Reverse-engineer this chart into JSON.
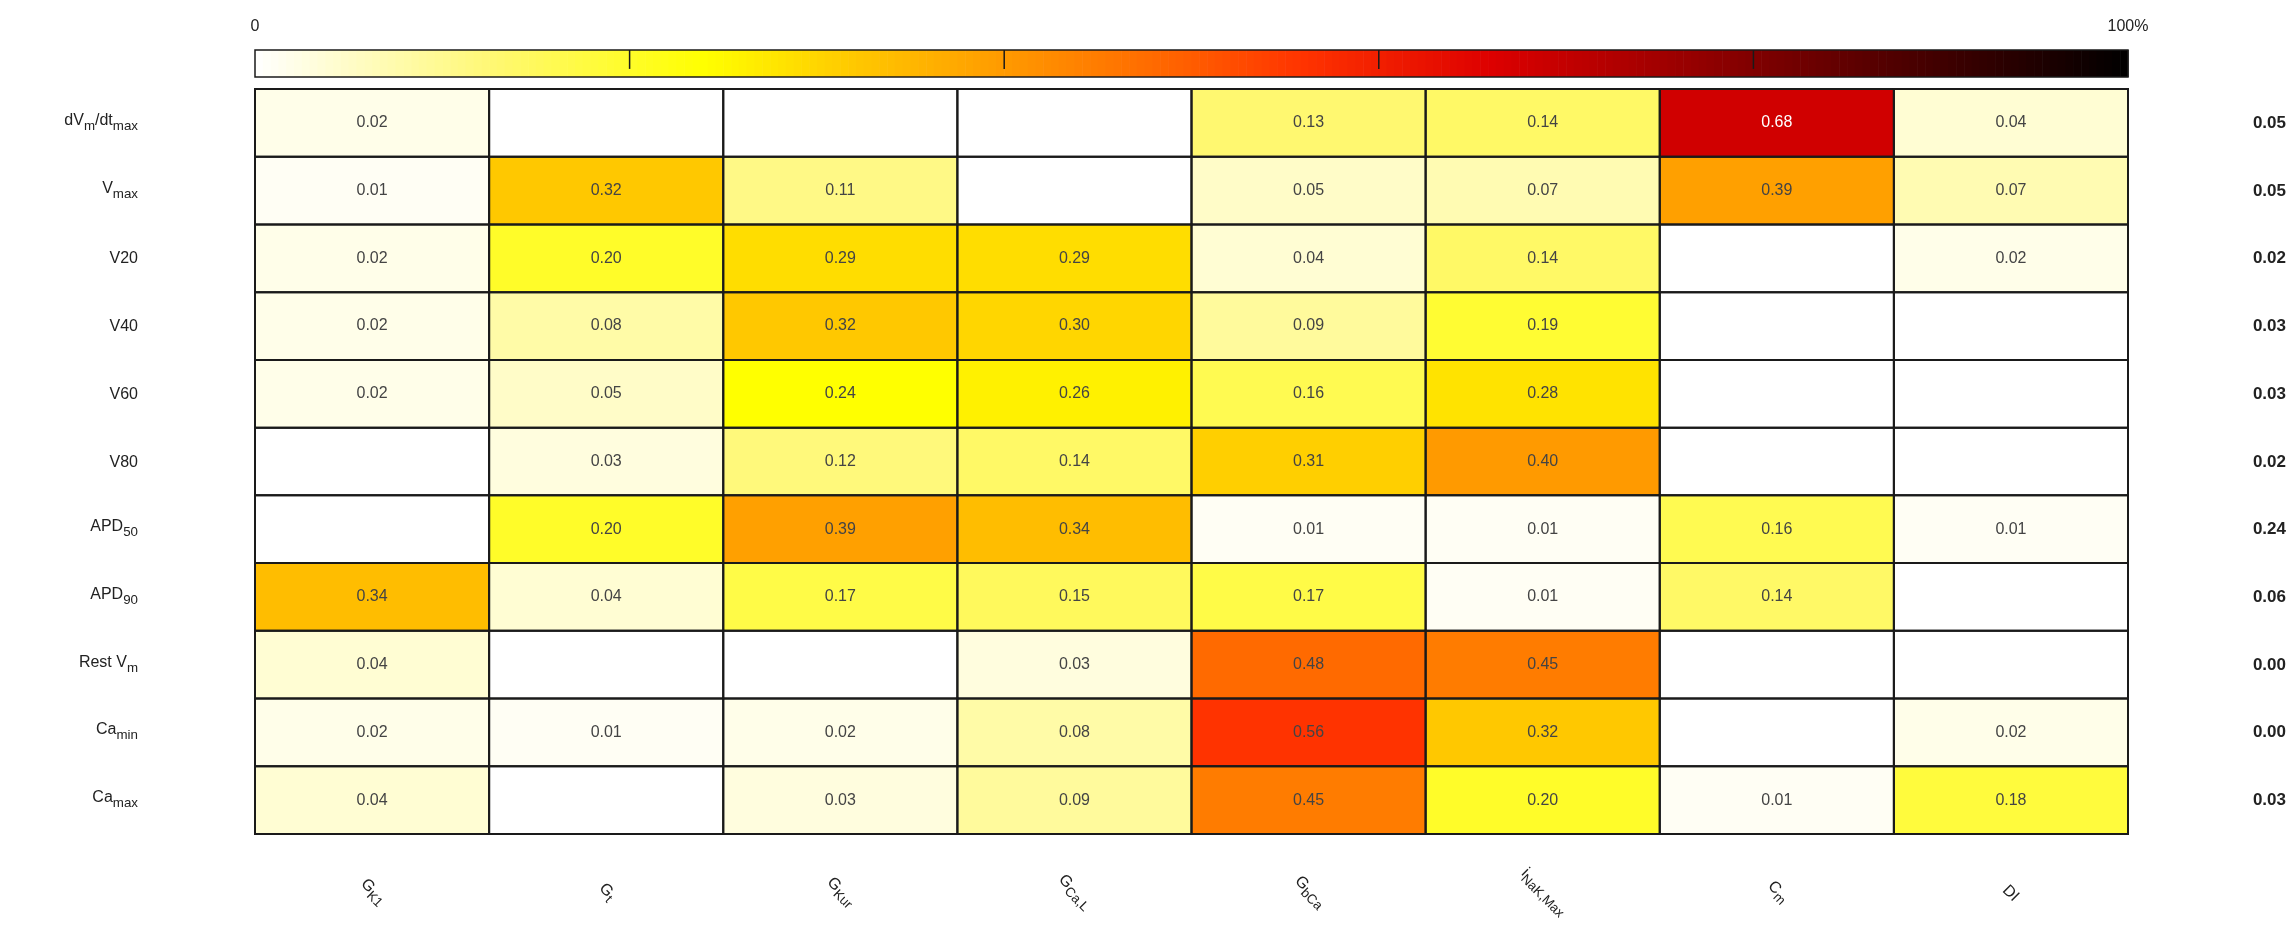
{
  "chart_data": {
    "type": "heatmap",
    "categories": [
      "G$_{K1}$",
      "G$_{t}$",
      "G$_{Kur}$",
      "G$_{Ca,L}$",
      "G$_{bCa}$",
      "i$_{NaK,Max}$",
      "C$_{m}$",
      "DI"
    ],
    "y_categories": [
      "dV$_{m}$/dt$_{max}$",
      "V$_{max}$",
      "V20",
      "V40",
      "V60",
      "V80",
      "APD$_{50}$",
      "APD$_{90}$",
      "Rest V$_{m}$",
      "Ca$_{min}$",
      "Ca$_{max}$"
    ],
    "y2_categories": [
      "0.05",
      "0.05",
      "0.02",
      "0.03",
      "0.03",
      "0.02",
      "0.24",
      "0.06",
      "0.00",
      "0.00",
      "0.03"
    ],
    "cells": [
      [
        0.02,
        null,
        null,
        null,
        0.13,
        0.14,
        0.68,
        0.04
      ],
      [
        0.01,
        0.32,
        0.11,
        null,
        0.05,
        0.07,
        0.39,
        0.07
      ],
      [
        0.02,
        0.2,
        0.29,
        0.29,
        0.04,
        0.14,
        null,
        0.02
      ],
      [
        0.02,
        0.08,
        0.32,
        0.3,
        0.09,
        0.19,
        null,
        null
      ],
      [
        0.02,
        0.05,
        0.24,
        0.26,
        0.16,
        0.28,
        null,
        null
      ],
      [
        null,
        0.03,
        0.12,
        0.14,
        0.31,
        0.4,
        null,
        null
      ],
      [
        null,
        0.2,
        0.39,
        0.34,
        0.01,
        0.01,
        0.16,
        0.01
      ],
      [
        0.34,
        0.04,
        0.17,
        0.15,
        0.17,
        0.01,
        0.14,
        null
      ],
      [
        0.04,
        null,
        null,
        0.03,
        0.48,
        0.45,
        null,
        null
      ],
      [
        0.02,
        0.01,
        0.02,
        0.08,
        0.56,
        0.32,
        null,
        0.02
      ],
      [
        0.04,
        null,
        0.03,
        0.09,
        0.45,
        0.2,
        0.01,
        0.18
      ]
    ],
    "cell_labels": [
      [
        "0.02",
        null,
        null,
        null,
        "0.13",
        "0.14",
        "0.68",
        "0.04"
      ],
      [
        "0.01",
        "0.32",
        "0.11",
        null,
        "0.05",
        "0.07",
        "0.39",
        "0.07"
      ],
      [
        "0.02",
        "0.20",
        "0.29",
        "0.29",
        "0.04",
        "0.14",
        null,
        "0.02"
      ],
      [
        "0.02",
        "0.08",
        "0.32",
        "0.30",
        "0.09",
        "0.19",
        null,
        null
      ],
      [
        "0.02",
        "0.05",
        "0.24",
        "0.26",
        "0.16",
        "0.28",
        null,
        null
      ],
      [
        null,
        "0.03",
        "0.12",
        "0.14",
        "0.31",
        "0.40",
        null,
        null
      ],
      [
        null,
        "0.20",
        "0.39",
        "0.34",
        "0.01",
        "0.01",
        "0.16",
        "0.01"
      ],
      [
        "0.34",
        "0.04",
        "0.17",
        "0.15",
        "0.17",
        "0.01",
        "0.14",
        null
      ],
      [
        "0.04",
        null,
        null,
        "0.03",
        "0.48",
        "0.45",
        null,
        null
      ],
      [
        "0.02",
        "0.01",
        "0.02",
        "0.08",
        "0.56",
        "0.32",
        null,
        "0.02"
      ],
      [
        "0.04",
        null,
        "0.03",
        "0.09",
        "0.45",
        "0.20",
        "0.01",
        "0.18"
      ]
    ],
    "clim": [
      0,
      1
    ],
    "cticks": [
      {
        "value": 0,
        "label": "0"
      },
      {
        "value": 0.2,
        "label": null
      },
      {
        "value": 0.4,
        "label": null
      },
      {
        "value": 0.6,
        "label": null
      },
      {
        "value": 0.8,
        "label": null
      },
      {
        "value": 1,
        "label": "100%"
      }
    ]
  }
}
